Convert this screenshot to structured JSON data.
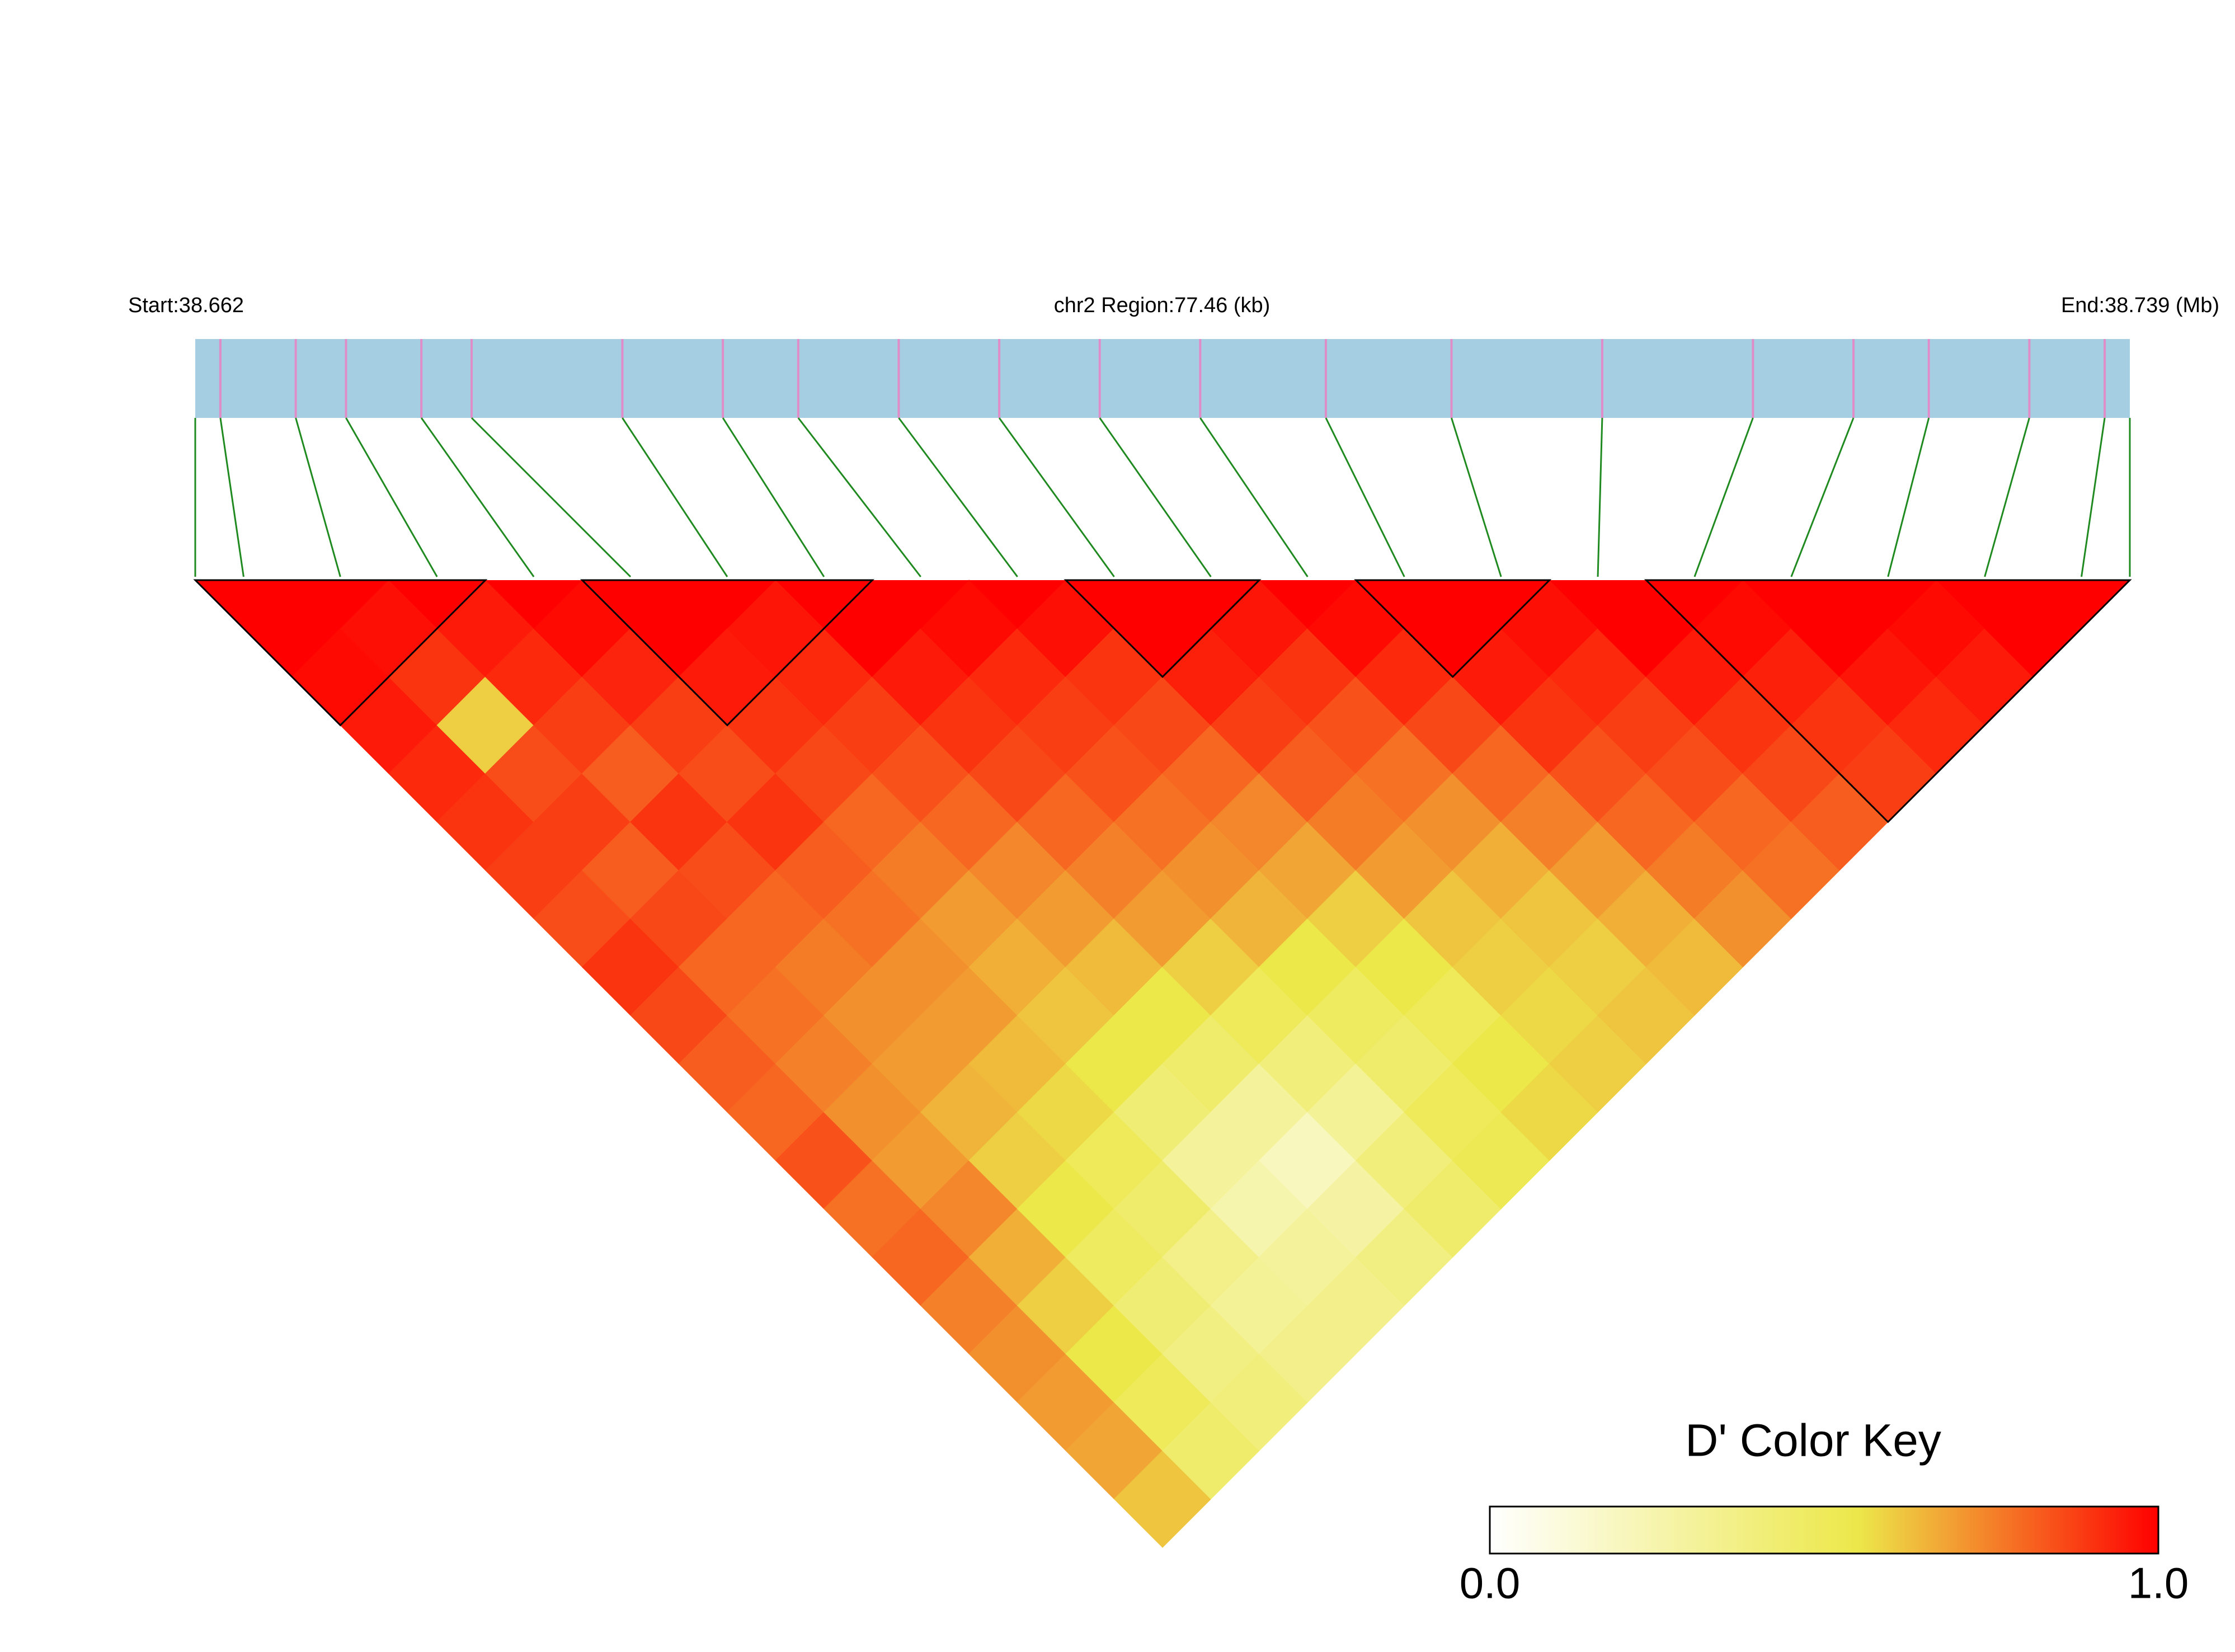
{
  "chart_data": {
    "type": "ld_heatmap",
    "start_label": "Start:38.662",
    "region_label": "chr2 Region:77.46 (kb)",
    "end_label": "End:38.739 (Mb)",
    "key_title": "D' Color Key",
    "xlim": [
      38.662,
      38.739
    ],
    "snp_positions": [
      38.663,
      38.666,
      38.668,
      38.671,
      38.673,
      38.679,
      38.683,
      38.686,
      38.69,
      38.694,
      38.698,
      38.702,
      38.707,
      38.712,
      38.718,
      38.724,
      38.728,
      38.731,
      38.735,
      38.738
    ],
    "snp_color": "#e08cc8",
    "track_color": "#a6cee3",
    "link_color": "#1f8a1f",
    "matrix": [
      [
        1,
        0.98,
        0.95,
        0.92,
        0.9,
        0.88,
        0.85,
        0.9,
        0.86,
        0.82,
        0.8,
        0.84,
        0.78,
        0.8,
        0.75,
        0.72,
        0.7,
        0.68,
        0.62
      ],
      [
        0.97,
        0.9,
        0.6,
        0.85,
        0.88,
        0.82,
        0.86,
        0.8,
        0.78,
        0.75,
        0.72,
        0.7,
        0.74,
        0.66,
        0.6,
        0.55,
        0.5,
        0.45
      ],
      [
        0.95,
        0.92,
        0.88,
        0.82,
        0.9,
        0.85,
        0.8,
        0.76,
        0.72,
        0.7,
        0.65,
        0.6,
        0.55,
        0.48,
        0.42,
        0.38,
        0.4
      ],
      [
        0.98,
        0.93,
        0.88,
        0.85,
        0.9,
        0.82,
        0.78,
        0.72,
        0.7,
        0.64,
        0.58,
        0.5,
        0.45,
        0.36,
        0.32,
        0.35
      ],
      [
        1,
        0.95,
        0.9,
        0.86,
        0.8,
        0.76,
        0.7,
        0.66,
        0.62,
        0.55,
        0.42,
        0.3,
        0.25,
        0.3,
        0.35
      ],
      [
        0.96,
        0.92,
        0.88,
        0.84,
        0.8,
        0.74,
        0.7,
        0.64,
        0.55,
        0.45,
        0.3,
        0.2,
        0.28,
        0.38
      ],
      [
        1,
        0.95,
        0.9,
        0.86,
        0.8,
        0.75,
        0.7,
        0.6,
        0.5,
        0.4,
        0.32,
        0.4,
        0.45
      ],
      [
        0.98,
        0.92,
        0.88,
        0.84,
        0.78,
        0.72,
        0.65,
        0.55,
        0.48,
        0.45,
        0.5,
        0.52
      ],
      [
        0.97,
        0.9,
        0.86,
        0.8,
        0.74,
        0.68,
        0.6,
        0.55,
        0.5,
        0.55,
        0.58
      ],
      [
        1,
        0.94,
        0.88,
        0.82,
        0.76,
        0.7,
        0.62,
        0.6,
        0.58,
        0.6
      ],
      [
        0.96,
        0.9,
        0.84,
        0.78,
        0.72,
        0.66,
        0.62,
        0.6,
        0.62
      ],
      [
        0.98,
        0.92,
        0.86,
        0.8,
        0.75,
        0.7,
        0.66,
        0.64
      ],
      [
        1,
        0.95,
        0.9,
        0.84,
        0.8,
        0.76,
        0.72
      ],
      [
        0.97,
        0.92,
        0.88,
        0.85,
        0.8,
        0.78
      ],
      [
        1,
        0.95,
        0.9,
        0.86,
        0.82
      ],
      [
        0.98,
        0.94,
        0.9,
        0.88
      ],
      [
        1,
        0.96,
        0.92
      ],
      [
        0.98,
        0.95
      ],
      [
        1
      ]
    ],
    "blocks": [
      [
        0,
        2
      ],
      [
        4,
        6
      ],
      [
        9,
        10
      ],
      [
        12,
        13
      ],
      [
        15,
        19
      ]
    ],
    "colorscale": [
      [
        0,
        "#ffffff"
      ],
      [
        0.55,
        "#ece84a"
      ],
      [
        1,
        "#ff0000"
      ]
    ],
    "colorbar_ticks": [
      {
        "value": 0,
        "label": "0.0"
      },
      {
        "value": 1,
        "label": "1.0"
      }
    ]
  }
}
